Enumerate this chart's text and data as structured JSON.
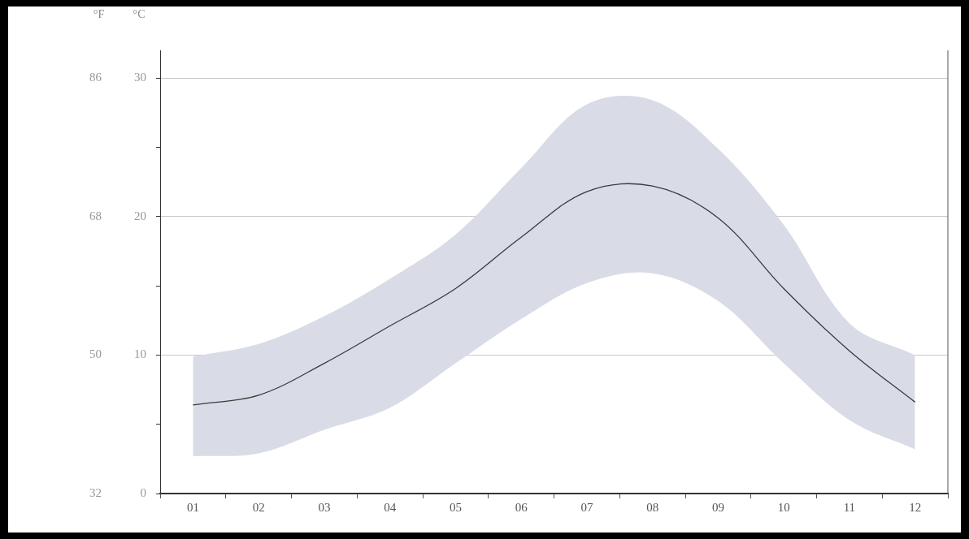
{
  "chart_data": {
    "type": "line",
    "ylabel": "°C",
    "y2label": "°F",
    "categories": [
      "01",
      "02",
      "03",
      "04",
      "05",
      "06",
      "07",
      "08",
      "09",
      "10",
      "11",
      "12"
    ],
    "series": [
      {
        "color": "#3a3a3a",
        "values": [
          6.4,
          7.1,
          9.4,
          12.1,
          14.8,
          18.5,
          21.8,
          22.2,
          19.9,
          14.8,
          10.3,
          6.6
        ],
        "lower": [
          2.7,
          2.9,
          4.6,
          6.2,
          9.4,
          12.6,
          15.2,
          15.9,
          13.9,
          9.4,
          5.3,
          3.2
        ],
        "upper": [
          9.9,
          10.8,
          12.8,
          15.5,
          18.7,
          23.5,
          28.1,
          28.4,
          24.9,
          19.4,
          12.3,
          10.0
        ]
      }
    ],
    "ylim": [
      0,
      32
    ],
    "yticks": [
      0,
      {
        "value": 5,
        "label": null
      },
      10,
      {
        "value": 15,
        "label": null
      },
      20,
      {
        "value": 25,
        "label": null
      },
      30
    ],
    "y2lim": [
      32,
      89.6
    ],
    "y2ticks": [
      32,
      50,
      68,
      86
    ],
    "grid": "y",
    "marker": "none",
    "line_style": "solid"
  }
}
